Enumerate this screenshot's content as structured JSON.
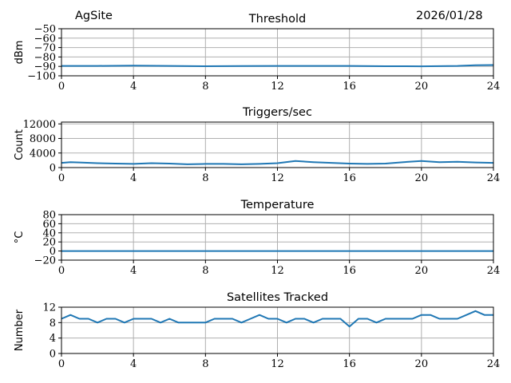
{
  "header": {
    "site": "AgSite",
    "date": "2026/01/28"
  },
  "colors": {
    "series": "#1f77b4",
    "grid": "#b0b0b0",
    "axis": "#000000"
  },
  "chart_data": [
    {
      "type": "line",
      "title": "Threshold",
      "xlabel": "",
      "ylabel": "dBm",
      "xlim": [
        0,
        24
      ],
      "ylim": [
        -100,
        -50
      ],
      "xticks": [
        "0",
        "4",
        "8",
        "12",
        "16",
        "20",
        "24"
      ],
      "yticks": [
        "−100",
        "−90",
        "−80",
        "−70",
        "−60",
        "−50"
      ],
      "grid": true,
      "series": [
        {
          "x": [
            0,
            2,
            4,
            6,
            8,
            10,
            12,
            14,
            16,
            18,
            20,
            22,
            23,
            24
          ],
          "values": [
            -89.5,
            -89.5,
            -89.2,
            -89.5,
            -89.8,
            -89.6,
            -89.5,
            -89.5,
            -89.5,
            -89.8,
            -89.9,
            -89.5,
            -88.7,
            -88.6
          ]
        }
      ]
    },
    {
      "type": "line",
      "title": "Triggers/sec",
      "xlabel": "",
      "ylabel": "Count",
      "xlim": [
        0,
        24
      ],
      "ylim": [
        0,
        12500
      ],
      "xticks": [
        "0",
        "4",
        "8",
        "12",
        "16",
        "20",
        "24"
      ],
      "yticks": [
        "0",
        "4000",
        "8000",
        "12000"
      ],
      "grid": true,
      "series": [
        {
          "x": [
            0,
            0.5,
            1,
            2,
            3,
            4,
            5,
            6,
            7,
            8,
            9,
            10,
            11,
            12,
            13,
            14,
            15,
            16,
            17,
            18,
            19,
            20,
            21,
            22,
            23,
            24
          ],
          "values": [
            1300,
            1500,
            1400,
            1200,
            1100,
            1000,
            1200,
            1100,
            900,
            1000,
            1000,
            900,
            1000,
            1200,
            1800,
            1500,
            1300,
            1100,
            1000,
            1100,
            1500,
            1800,
            1500,
            1600,
            1400,
            1300
          ]
        }
      ]
    },
    {
      "type": "line",
      "title": "Temperature",
      "xlabel": "",
      "ylabel": "°C",
      "xlim": [
        0,
        24
      ],
      "ylim": [
        -20,
        80
      ],
      "xticks": [
        "0",
        "4",
        "8",
        "12",
        "16",
        "20",
        "24"
      ],
      "yticks": [
        "−20",
        "0",
        "20",
        "40",
        "60",
        "80"
      ],
      "grid": true,
      "series": [
        {
          "x": [
            0,
            24
          ],
          "values": [
            0,
            0
          ]
        }
      ]
    },
    {
      "type": "line",
      "title": "Satellites Tracked",
      "xlabel": "",
      "ylabel": "Number",
      "xlim": [
        0,
        24
      ],
      "ylim": [
        0,
        12
      ],
      "xticks": [
        "0",
        "4",
        "8",
        "12",
        "16",
        "20",
        "24"
      ],
      "yticks": [
        "0",
        "4",
        "8",
        "12"
      ],
      "grid": true,
      "series": [
        {
          "x": [
            0,
            0.5,
            1,
            1.5,
            2,
            2.5,
            3,
            3.5,
            4,
            4.5,
            5,
            5.5,
            6,
            6.5,
            7,
            7.5,
            8,
            8.5,
            9,
            9.5,
            10,
            10.5,
            11,
            11.5,
            12,
            12.5,
            13,
            13.5,
            14,
            14.5,
            15,
            15.5,
            16,
            16.5,
            17,
            17.5,
            18,
            18.5,
            19,
            19.5,
            20,
            20.5,
            21,
            21.5,
            22,
            22.5,
            23,
            23.5,
            24
          ],
          "values": [
            9,
            10,
            9,
            9,
            8,
            9,
            9,
            8,
            9,
            9,
            9,
            8,
            9,
            8,
            8,
            8,
            8,
            9,
            9,
            9,
            8,
            9,
            10,
            9,
            9,
            8,
            9,
            9,
            8,
            9,
            9,
            9,
            7,
            9,
            9,
            8,
            9,
            9,
            9,
            9,
            10,
            10,
            9,
            9,
            9,
            10,
            11,
            10,
            10
          ]
        }
      ]
    }
  ]
}
